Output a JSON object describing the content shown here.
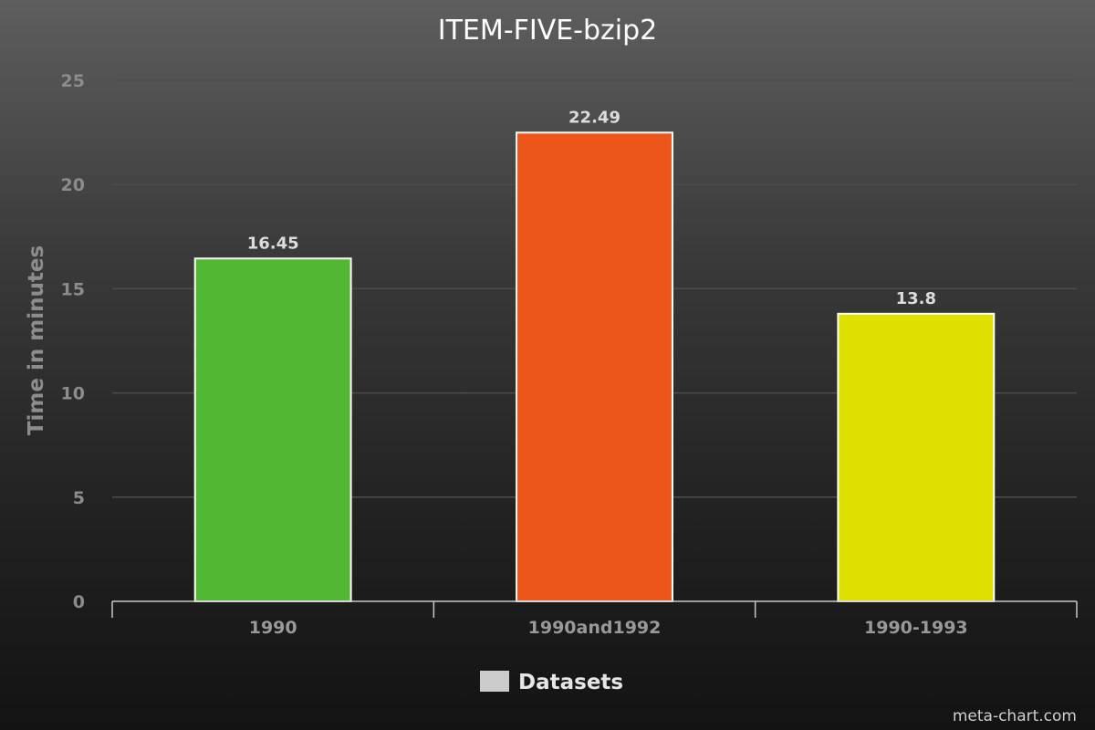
{
  "chart_data": {
    "type": "bar",
    "title": "ITEM-FIVE-bzip2",
    "xlabel": "",
    "ylabel": "Time in minutes",
    "categories": [
      "1990",
      "1990and1992",
      "1990-1993"
    ],
    "series": [
      {
        "name": "Datasets",
        "values": [
          16.45,
          22.49,
          13.8
        ],
        "colors": [
          "#52b733",
          "#ec561b",
          "#dde000"
        ]
      }
    ],
    "data_labels": [
      "16.45",
      "22.49",
      "13.8"
    ],
    "ylim": [
      0,
      25
    ],
    "yticks": [
      0,
      5,
      10,
      15,
      20,
      25
    ],
    "grid": true,
    "legend_position": "bottom",
    "legend_color": "#cccccc"
  },
  "credit": "meta-chart.com"
}
